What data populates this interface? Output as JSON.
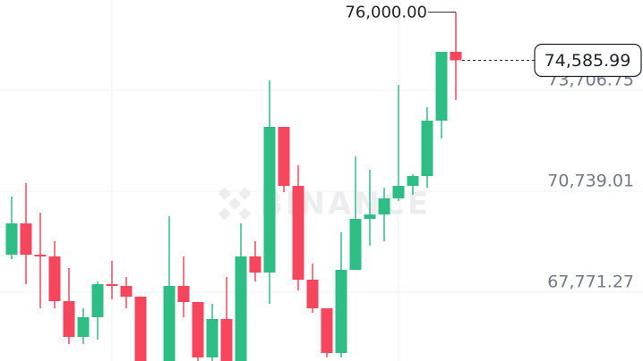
{
  "chart_data": {
    "type": "candlestick",
    "watermark": "BINANCE",
    "up_color": "#2ebd85",
    "down_color": "#f6465d",
    "ylim": [
      65749,
      76359
    ],
    "yticks": [
      {
        "value": 73706.75,
        "label": "73,706.75"
      },
      {
        "value": 70739.01,
        "label": "70,739.01"
      },
      {
        "value": 67771.27,
        "label": "67,771.27"
      }
    ],
    "grid": true,
    "open": [
      68874,
      69793,
      68874,
      68822,
      67508,
      66458,
      67036,
      68007,
      67955,
      67640,
      null,
      65749,
      67955,
      67482,
      65854,
      66983,
      65749,
      68822,
      68349,
      72630,
      70896,
      68139,
      67298,
      65985,
      68428,
      69925,
      70056,
      70529,
      70896,
      71185,
      72813,
      74836
    ],
    "high": [
      70581,
      70975,
      70108,
      69268,
      68480,
      67298,
      68086,
      68690,
      68217,
      67640,
      null,
      70003,
      68822,
      67482,
      67430,
      68217,
      69793,
      69268,
      73995,
      72630,
      71500,
      68611,
      67298,
      69531,
      71763,
      71369,
      70844,
      73864,
      71238,
      73207,
      74836,
      76000
    ],
    "low": [
      68743,
      68007,
      67298,
      67298,
      66248,
      66248,
      66379,
      67561,
      67298,
      65749,
      null,
      65749,
      67036,
      65749,
      65749,
      65749,
      65749,
      68086,
      67430,
      70712,
      67824,
      67167,
      65854,
      65854,
      68428,
      69137,
      69268,
      70450,
      70634,
      70844,
      72288,
      73418
    ],
    "close": [
      69793,
      68874,
      68822,
      67508,
      66458,
      67036,
      68007,
      67955,
      67640,
      65749,
      null,
      67955,
      67482,
      65854,
      66983,
      65749,
      68822,
      68349,
      72630,
      70896,
      68139,
      67298,
      65985,
      68428,
      69925,
      70056,
      70529,
      70896,
      71185,
      72813,
      74836,
      74585.99
    ],
    "high_marker": {
      "value": 76000,
      "label": "76,000.00"
    },
    "last_price": {
      "value": 74585.99,
      "label": "74,585.99"
    }
  }
}
